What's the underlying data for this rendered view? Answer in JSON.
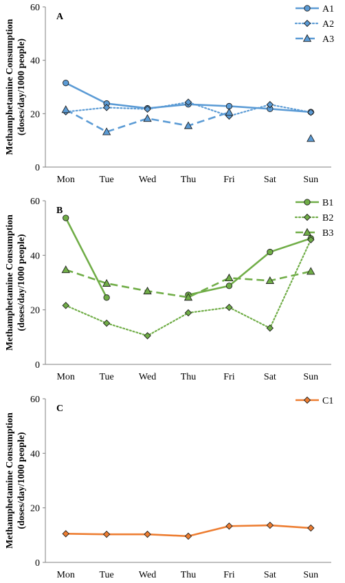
{
  "chart_data": [
    {
      "type": "line",
      "panel_label": "A",
      "categories": [
        "Mon",
        "Tue",
        "Wed",
        "Thu",
        "Fri",
        "Sat",
        "Sun"
      ],
      "ylabel_line1": "Methamphetamine Consumption",
      "ylabel_line2": "(doses/day/1000 people)",
      "ylim": [
        0,
        60
      ],
      "yticks": [
        "0",
        "20",
        "40",
        "60"
      ],
      "grid": false,
      "legend_position": "top-right",
      "series": [
        {
          "name": "A1",
          "color": "#5B9BD5",
          "dash": "solid",
          "marker": "circle",
          "values": [
            31.5,
            23.8,
            22.0,
            23.5,
            22.8,
            21.8,
            20.6
          ]
        },
        {
          "name": "A2",
          "color": "#5B9BD5",
          "dash": "dotted",
          "marker": "diamond",
          "values": [
            20.7,
            22.3,
            21.7,
            24.3,
            19.1,
            23.4,
            20.5
          ]
        },
        {
          "name": "A3",
          "color": "#5B9BD5",
          "dash": "dashed",
          "marker": "triangle",
          "values": [
            21.5,
            13.2,
            18.2,
            15.5,
            20.5,
            null,
            10.7
          ]
        }
      ]
    },
    {
      "type": "line",
      "panel_label": "B",
      "categories": [
        "Mon",
        "Tue",
        "Wed",
        "Thu",
        "Fri",
        "Sat",
        "Sun"
      ],
      "ylabel_line1": "Methamphetamine Consumption",
      "ylabel_line2": "(doses/day/1000 people)",
      "ylim": [
        0,
        60
      ],
      "yticks": [
        "0",
        "20",
        "40",
        "60"
      ],
      "grid": false,
      "legend_position": "top-right",
      "series": [
        {
          "name": "B1",
          "color": "#70AD47",
          "dash": "solid",
          "marker": "circle",
          "values": [
            53.7,
            24.5,
            null,
            25.5,
            28.8,
            41.2,
            46.2
          ]
        },
        {
          "name": "B2",
          "color": "#70AD47",
          "dash": "dotted",
          "marker": "diamond",
          "values": [
            21.6,
            15.1,
            10.5,
            18.9,
            20.9,
            13.3,
            45.7
          ]
        },
        {
          "name": "B3",
          "color": "#70AD47",
          "dash": "dashed",
          "marker": "triangle",
          "values": [
            34.7,
            29.7,
            26.9,
            24.6,
            31.7,
            30.7,
            34.1
          ]
        }
      ]
    },
    {
      "type": "line",
      "panel_label": "C",
      "categories": [
        "Mon",
        "Tue",
        "Wed",
        "Thu",
        "Fri",
        "Sat",
        "Sun"
      ],
      "ylabel_line1": "Methamphetamine Consumption",
      "ylabel_line2": "(doses/day/1000 people)",
      "ylim": [
        0,
        60
      ],
      "yticks": [
        "0",
        "20",
        "40",
        "60"
      ],
      "grid": false,
      "legend_position": "top-right",
      "series": [
        {
          "name": "C1",
          "color": "#ED7D31",
          "dash": "solid",
          "marker": "diamond",
          "values": [
            10.5,
            10.3,
            10.3,
            9.6,
            13.3,
            13.6,
            12.6
          ]
        }
      ]
    }
  ]
}
